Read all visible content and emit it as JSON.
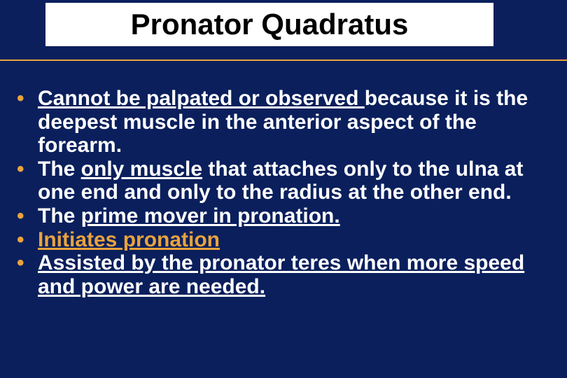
{
  "slide": {
    "background_color": "#0a1f5c",
    "rule_color": "#e8a33d",
    "bullet_color": "#e8a33d",
    "text_color": "#ffffff",
    "accent_color": "#e8a33d",
    "title_box_bg": "#ffffff",
    "title_text_color": "#000000",
    "title_fontsize": 42,
    "body_fontsize": 30
  },
  "title": "Pronator Quadratus",
  "b1": {
    "p1": "Cannot be palpated or observed ",
    "p2": "because it is the deepest muscle in the anterior aspect of the forearm."
  },
  "b2": {
    "p1": "The ",
    "p2": "only muscle",
    "p3": " that attaches only to the ulna at one end and only to the radius at the other end."
  },
  "b3": {
    "p1": "The ",
    "p2": "prime mover in pronation."
  },
  "b4": {
    "p1": "Initiates pronation"
  },
  "b5": {
    "p1": "Assisted by the pronator teres when more speed and power are needed."
  }
}
